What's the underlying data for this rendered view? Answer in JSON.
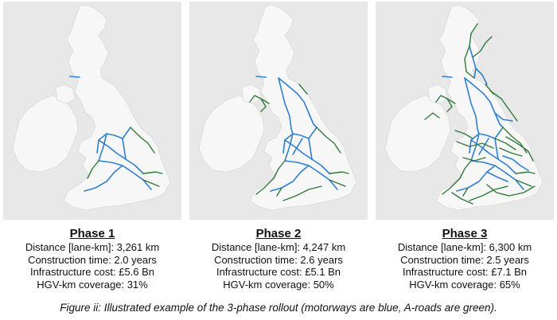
{
  "colors": {
    "motorway": "#2f7fd0",
    "a_road": "#2f7a3a",
    "sea": "#e8e8e8",
    "land": "#f7f7f7"
  },
  "phases": [
    {
      "title": "Phase 1",
      "stats": [
        "Distance [lane-km]: 3,261 km",
        "Construction time: 2.0 years",
        "Infrastructure cost: £5.6 Bn",
        "HGV-km coverage: 31%"
      ]
    },
    {
      "title": "Phase 2",
      "stats": [
        "Distance [lane-km]: 4,247 km",
        "Construction time: 2.6 years",
        "Infrastructure cost: £5.1 Bn",
        "HGV-km coverage: 50%"
      ]
    },
    {
      "title": "Phase 3",
      "stats": [
        "Distance [lane-km]: 6,300 km",
        "Construction time: 2.5 years",
        "Infrastructure cost: £7.1 Bn",
        "HGV-km coverage: 65%"
      ]
    }
  ],
  "figure_caption": "Figure ii: Illustrated example of the 3-phase rollout (motorways are blue, A-roads are green)."
}
